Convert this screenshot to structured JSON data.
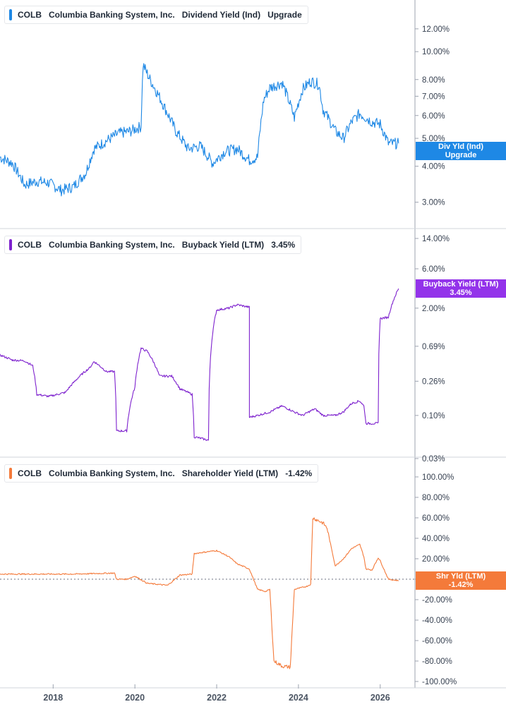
{
  "ticker": "COLB",
  "company": "Columbia Banking System, Inc.",
  "panels": [
    {
      "id": "dividend",
      "metric": "Dividend Yield (Ind)",
      "value_text": "Upgrade",
      "color": "#1e88e5",
      "tag_lines": [
        "Div Yld (Ind)",
        "Upgrade"
      ]
    },
    {
      "id": "buyback",
      "metric": "Buyback Yield (LTM)",
      "value_text": "3.45%",
      "color": "#7e22ce",
      "tag_lines": [
        "Buyback Yield (LTM)",
        "3.45%"
      ]
    },
    {
      "id": "shareholder",
      "metric": "Shareholder Yield (LTM)",
      "value_text": "-1.42%",
      "color": "#f47a3a",
      "tag_lines": [
        "Shr Yld (LTM)",
        "-1.42%"
      ]
    }
  ],
  "chart_data": [
    {
      "type": "line",
      "title": "COLB Columbia Banking System, Inc. Dividend Yield (Ind)",
      "scale": "log",
      "y_ticks": [
        "3.00%",
        "4.00%",
        "5.00%",
        "6.00%",
        "7.00%",
        "8.00%",
        "10.00%",
        "12.00%"
      ],
      "y_tick_values": [
        3,
        4,
        5,
        6,
        7,
        8,
        10,
        12
      ],
      "ylim": [
        2.6,
        13.5
      ],
      "series": [
        {
          "x": [
            2016.7,
            2017.0,
            2017.3,
            2017.6,
            2017.9,
            2018.2,
            2018.5,
            2018.8,
            2019.0,
            2019.3,
            2019.6,
            2019.9,
            2020.15,
            2020.2,
            2020.35,
            2020.5,
            2020.75,
            2021.0,
            2021.3,
            2021.6,
            2021.9,
            2022.2,
            2022.5,
            2022.8,
            2023.0,
            2023.15,
            2023.3,
            2023.6,
            2023.9,
            2024.1,
            2024.3,
            2024.5,
            2024.6,
            2024.9,
            2025.1,
            2025.3,
            2025.5,
            2025.8,
            2026.0,
            2026.2,
            2026.45
          ],
          "values": [
            4.3,
            4.1,
            3.45,
            3.55,
            3.5,
            3.3,
            3.4,
            3.8,
            4.6,
            4.9,
            5.2,
            5.3,
            5.5,
            9.0,
            8.1,
            7.4,
            6.3,
            5.3,
            4.6,
            4.7,
            4.1,
            4.5,
            4.6,
            4.2,
            4.3,
            6.8,
            7.5,
            7.8,
            5.9,
            7.4,
            7.9,
            7.7,
            6.3,
            5.3,
            5.0,
            5.7,
            6.1,
            5.7,
            5.6,
            4.8,
            4.8
          ]
        }
      ]
    },
    {
      "type": "line",
      "title": "COLB Columbia Banking System, Inc. Buyback Yield (LTM)",
      "scale": "log",
      "y_ticks": [
        "0.03%",
        "0.10%",
        "0.26%",
        "0.69%",
        "2.00%",
        "6.00%",
        "14.00%"
      ],
      "y_tick_values": [
        0.03,
        0.1,
        0.26,
        0.69,
        2.0,
        6.0,
        14.0
      ],
      "ylim": [
        0.03,
        14.0
      ],
      "series": [
        {
          "x": [
            2016.7,
            2017.0,
            2017.3,
            2017.5,
            2017.6,
            2017.9,
            2018.3,
            2018.5,
            2018.9,
            2019.0,
            2019.3,
            2019.5,
            2019.55,
            2019.8,
            2020.0,
            2020.15,
            2020.3,
            2020.6,
            2020.9,
            2021.1,
            2021.4,
            2021.45,
            2021.8,
            2022.0,
            2022.3,
            2022.5,
            2022.8,
            2022.8,
            2023.0,
            2023.3,
            2023.6,
            2023.9,
            2024.1,
            2024.4,
            2024.6,
            2024.9,
            2025.1,
            2025.3,
            2025.5,
            2025.6,
            2025.65,
            2025.8,
            2025.95,
            2026.0,
            2026.2,
            2026.45
          ],
          "values": [
            0.54,
            0.47,
            0.46,
            0.4,
            0.18,
            0.17,
            0.19,
            0.25,
            0.38,
            0.45,
            0.34,
            0.34,
            0.065,
            0.065,
            0.22,
            0.65,
            0.6,
            0.3,
            0.3,
            0.21,
            0.18,
            0.055,
            0.05,
            1.9,
            2.0,
            2.2,
            2.05,
            0.095,
            0.1,
            0.11,
            0.13,
            0.11,
            0.1,
            0.12,
            0.1,
            0.1,
            0.11,
            0.14,
            0.15,
            0.13,
            0.08,
            0.08,
            0.08,
            1.5,
            1.55,
            3.45
          ]
        }
      ]
    },
    {
      "type": "line",
      "title": "COLB Columbia Banking System, Inc. Shareholder Yield (LTM)",
      "scale": "linear",
      "y_ticks": [
        "-100.00%",
        "-80.00%",
        "-60.00%",
        "-40.00%",
        "-20.00%",
        "0.00%",
        "20.00%",
        "40.00%",
        "60.00%",
        "80.00%",
        "100.00%"
      ],
      "y_tick_values": [
        -100,
        -80,
        -60,
        -40,
        -20,
        0,
        20,
        40,
        60,
        80,
        100
      ],
      "ylim": [
        -100,
        100
      ],
      "series": [
        {
          "x": [
            2016.7,
            2017.5,
            2018.5,
            2019.5,
            2019.55,
            2019.8,
            2020.0,
            2020.3,
            2020.8,
            2021.1,
            2021.4,
            2021.45,
            2021.8,
            2022.0,
            2022.3,
            2022.5,
            2022.8,
            2023.0,
            2023.2,
            2023.3,
            2023.4,
            2023.6,
            2023.8,
            2023.9,
            2024.2,
            2024.3,
            2024.35,
            2024.6,
            2024.7,
            2024.9,
            2025.1,
            2025.3,
            2025.5,
            2025.6,
            2025.65,
            2025.8,
            2025.95,
            2026.0,
            2026.2,
            2026.45
          ],
          "values": [
            5,
            5,
            5,
            6,
            0,
            0,
            3,
            -4,
            -6,
            4,
            5,
            25,
            27,
            28,
            22,
            15,
            10,
            -10,
            -12,
            -10,
            -80,
            -85,
            -86,
            -10,
            -7,
            -5,
            60,
            55,
            50,
            13,
            20,
            30,
            34,
            22,
            10,
            9,
            21,
            18,
            0,
            -1.42
          ]
        }
      ]
    }
  ],
  "x_axis": {
    "ticks": [
      "2018",
      "2020",
      "2022",
      "2024",
      "2026"
    ],
    "tick_values": [
      2018,
      2020,
      2022,
      2024,
      2026
    ],
    "xlim": [
      2016.7,
      2026.85
    ]
  }
}
